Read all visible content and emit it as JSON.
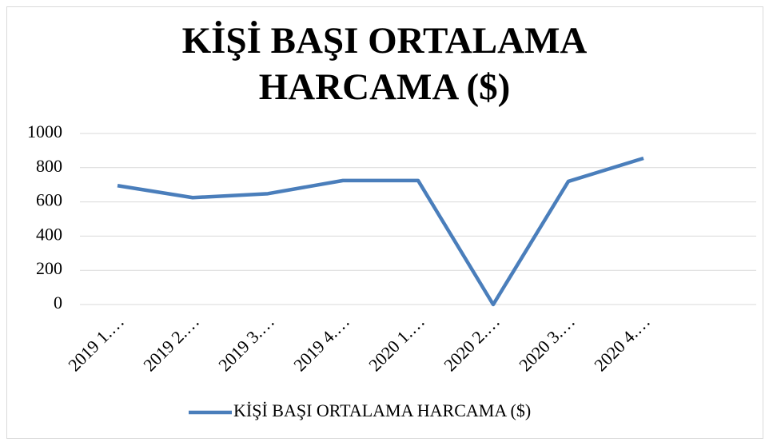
{
  "chart_data": {
    "type": "line",
    "title": "KİŞİ BAŞI ORTALAMA HARCAMA ($)",
    "categories": [
      "2019 1.…",
      "2019 2.…",
      "2019 3.…",
      "2019 4.…",
      "2020 1.…",
      "2020 2.…",
      "2020 3.…",
      "2020 4.…",
      null
    ],
    "series": [
      {
        "name": "KİŞİ BAŞI ORTALAMA HARCAMA ($)",
        "color": "#4a7ebb",
        "values": [
          695,
          625,
          648,
          725,
          725,
          0,
          720,
          855,
          null
        ]
      }
    ],
    "ylim": [
      0,
      1000
    ],
    "yticks": [
      0,
      200,
      400,
      600,
      800,
      1000
    ],
    "grid": true,
    "legend": "bottom"
  }
}
